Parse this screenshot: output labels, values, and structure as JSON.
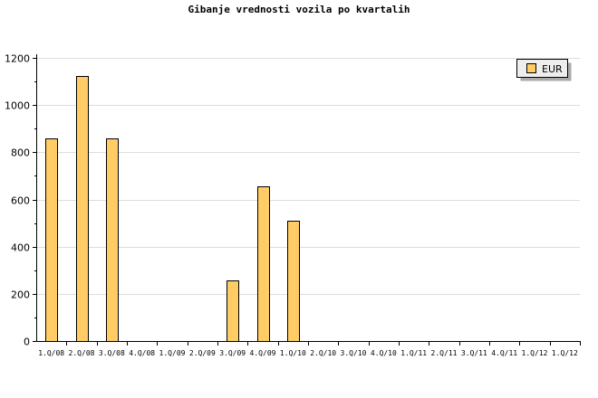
{
  "chart_data": {
    "type": "bar",
    "title": "Gibanje vrednosti vozila po kvartalih",
    "xlabel": "",
    "ylabel": "",
    "ylim": [
      0,
      1200
    ],
    "yticks": [
      0,
      200,
      400,
      600,
      800,
      1000,
      1200
    ],
    "grid": true,
    "legend_placement": "top-right",
    "categories": [
      "1.Q/08",
      "2.Q/08",
      "3.Q/08",
      "4.Q/08",
      "1.Q/09",
      "2.Q/09",
      "3.Q/09",
      "4.Q/09",
      "1.Q/10",
      "2.Q/10",
      "3.Q/10",
      "4.Q/10",
      "1.Q/11",
      "2.Q/11",
      "3.Q/11",
      "4.Q/11",
      "1.Q/12",
      "1.Q/12"
    ],
    "series": [
      {
        "name": "EUR",
        "color": "#ffcc66",
        "values": [
          860,
          1125,
          860,
          0,
          0,
          0,
          257,
          655,
          510,
          0,
          0,
          0,
          0,
          0,
          0,
          0,
          0,
          0
        ]
      }
    ]
  }
}
